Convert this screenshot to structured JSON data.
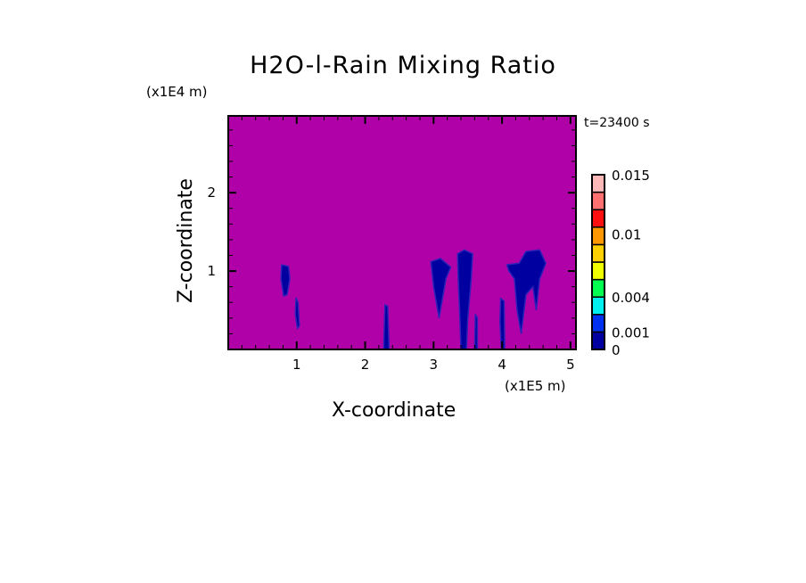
{
  "chart_data": {
    "type": "heatmap",
    "title": "H2O-l-Rain Mixing Ratio",
    "xlabel": "X-coordinate",
    "ylabel": "Z-coordinate",
    "x_unit": "(x1E5 m)",
    "y_unit": "(x1E4 m)",
    "time_label": "t=23400 s",
    "xlim": [
      0,
      5.08
    ],
    "ylim": [
      0,
      2.98
    ],
    "x_ticks": [
      1,
      2,
      3,
      4,
      5
    ],
    "y_ticks": [
      1,
      2
    ],
    "background_color": "#b000a8",
    "colorbar": {
      "levels": 10,
      "colors": [
        "#0000a0",
        "#0030f0",
        "#00f0f0",
        "#00ff50",
        "#f0ff00",
        "#ffd000",
        "#ff9800",
        "#ff1010",
        "#ff7070",
        "#ffb8b8"
      ],
      "labels": [
        {
          "text": "0",
          "level": 0
        },
        {
          "text": "0.001",
          "level": 1
        },
        {
          "text": "0.004",
          "level": 3
        },
        {
          "text": "0.01",
          "level": 6.6
        },
        {
          "text": "0.015",
          "level": 10
        }
      ]
    },
    "features": [
      {
        "color": "#0000a0",
        "points": [
          [
            0.78,
            1.08
          ],
          [
            0.88,
            1.06
          ],
          [
            0.9,
            0.9
          ],
          [
            0.86,
            0.7
          ],
          [
            0.81,
            0.68
          ],
          [
            0.77,
            0.9
          ]
        ]
      },
      {
        "color": "#0000a0",
        "points": [
          [
            0.99,
            0.66
          ],
          [
            1.02,
            0.6
          ],
          [
            1.04,
            0.3
          ],
          [
            1.01,
            0.27
          ],
          [
            0.98,
            0.45
          ]
        ]
      },
      {
        "color": "#0000a0",
        "points": [
          [
            2.29,
            0.57
          ],
          [
            2.33,
            0.55
          ],
          [
            2.35,
            0.0
          ],
          [
            2.27,
            0.0
          ],
          [
            2.28,
            0.3
          ]
        ]
      },
      {
        "color": "#0000a0",
        "points": [
          [
            2.96,
            1.12
          ],
          [
            3.1,
            1.16
          ],
          [
            3.25,
            1.05
          ],
          [
            3.18,
            0.9
          ],
          [
            3.12,
            0.6
          ],
          [
            3.08,
            0.4
          ],
          [
            3.05,
            0.55
          ],
          [
            3.0,
            0.8
          ]
        ]
      },
      {
        "color": "#0000a0",
        "points": [
          [
            3.35,
            1.22
          ],
          [
            3.45,
            1.27
          ],
          [
            3.57,
            1.22
          ],
          [
            3.55,
            0.9
          ],
          [
            3.5,
            0.4
          ],
          [
            3.48,
            0.0
          ],
          [
            3.4,
            0.0
          ],
          [
            3.38,
            0.5
          ],
          [
            3.36,
            0.9
          ]
        ]
      },
      {
        "color": "#0000a0",
        "points": [
          [
            3.61,
            0.45
          ],
          [
            3.64,
            0.4
          ],
          [
            3.64,
            0.0
          ],
          [
            3.6,
            0.0
          ]
        ]
      },
      {
        "color": "#0000a0",
        "points": [
          [
            3.98,
            0.65
          ],
          [
            4.03,
            0.62
          ],
          [
            4.04,
            0.0
          ],
          [
            3.99,
            0.0
          ],
          [
            3.97,
            0.35
          ]
        ]
      },
      {
        "color": "#0000a0",
        "points": [
          [
            4.07,
            1.08
          ],
          [
            4.25,
            1.1
          ],
          [
            4.35,
            1.25
          ],
          [
            4.55,
            1.27
          ],
          [
            4.64,
            1.1
          ],
          [
            4.55,
            0.9
          ],
          [
            4.5,
            0.5
          ],
          [
            4.45,
            0.8
          ],
          [
            4.35,
            0.7
          ],
          [
            4.28,
            0.2
          ],
          [
            4.22,
            0.5
          ],
          [
            4.18,
            0.9
          ],
          [
            4.1,
            1.0
          ]
        ]
      }
    ]
  }
}
